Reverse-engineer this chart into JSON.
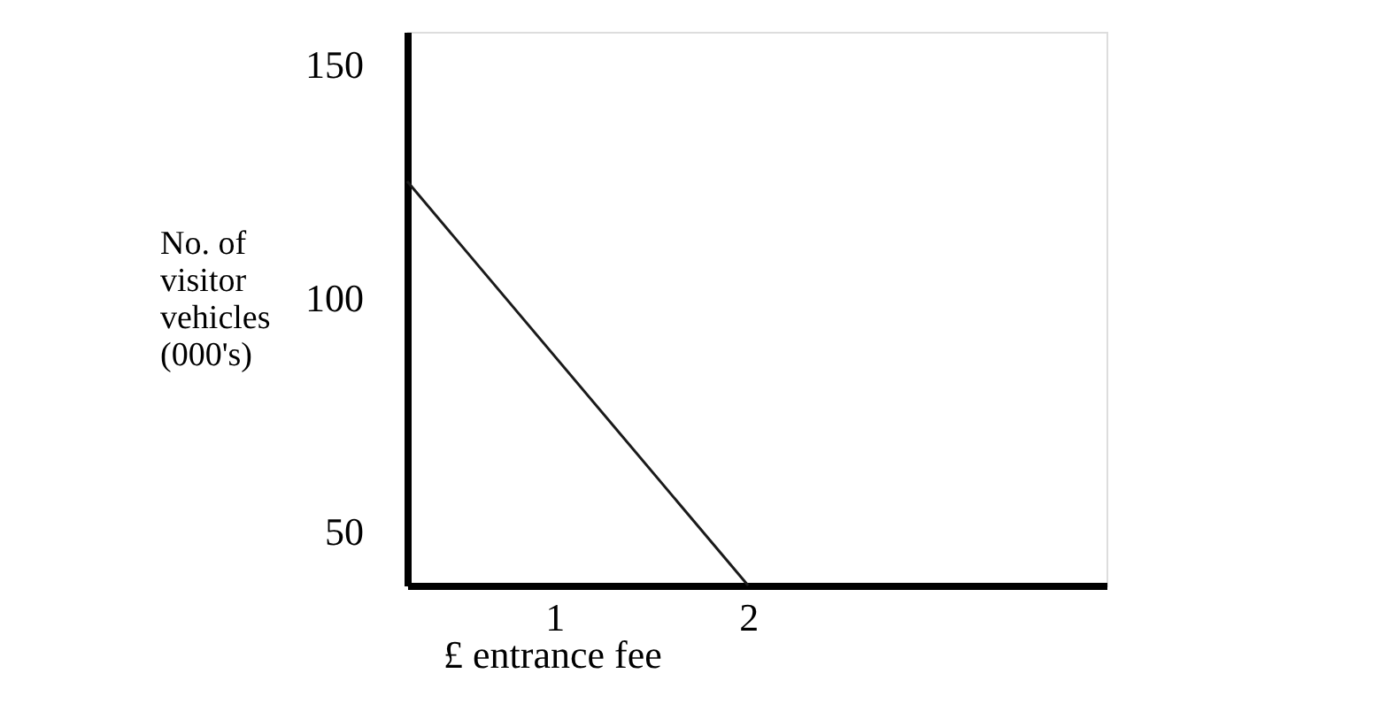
{
  "chart_data": {
    "type": "line",
    "x": [
      0.24,
      2
    ],
    "series": [
      {
        "color": "#1a1a1a",
        "values": [
          125,
          38.5
        ]
      }
    ],
    "xlim": [
      0.24,
      3.85
    ],
    "xticks": [
      1,
      2
    ],
    "ylim": [
      38.5,
      157
    ],
    "yticks": [
      50,
      100,
      150
    ],
    "xlabel": "£ entrance fee",
    "ylabel": "No. of visitor vehicles (000's)",
    "grid": false,
    "legend": false,
    "marker": "none",
    "line_style": "solid"
  }
}
